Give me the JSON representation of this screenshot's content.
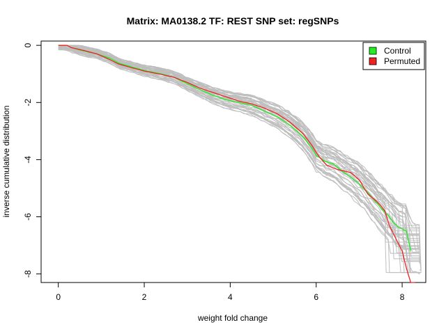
{
  "chart_data": {
    "type": "line",
    "title": "Matrix: MA0138.2 TF: REST SNP set: regSNPs",
    "xlabel": "weight fold change",
    "ylabel": "inverse cumulative distribution",
    "xlim": [
      -0.4,
      8.55
    ],
    "ylim": [
      -8.3,
      0.15
    ],
    "x_ticks": [
      0,
      2,
      4,
      6,
      8
    ],
    "y_ticks": [
      0,
      -2,
      -4,
      -6,
      -8
    ],
    "grid": false,
    "legend": {
      "position": "top-right",
      "entries": [
        {
          "label": "Control",
          "color": "#22ee22"
        },
        {
          "label": "Permuted",
          "color": "#ee2222"
        }
      ]
    },
    "background_series": {
      "color": "#bebebe",
      "count": 40,
      "description_free": true
    },
    "series": [
      {
        "name": "Control",
        "color": "#22ee22",
        "points": [
          [
            0,
            0
          ],
          [
            0.2,
            0
          ],
          [
            0.3,
            -0.08
          ],
          [
            0.6,
            -0.2
          ],
          [
            0.9,
            -0.3
          ],
          [
            1.2,
            -0.45
          ],
          [
            1.4,
            -0.62
          ],
          [
            1.7,
            -0.75
          ],
          [
            2.0,
            -0.88
          ],
          [
            2.4,
            -1.0
          ],
          [
            2.7,
            -1.12
          ],
          [
            3.0,
            -1.35
          ],
          [
            3.3,
            -1.55
          ],
          [
            3.6,
            -1.75
          ],
          [
            3.9,
            -1.9
          ],
          [
            4.2,
            -2.0
          ],
          [
            4.5,
            -2.1
          ],
          [
            4.8,
            -2.3
          ],
          [
            5.1,
            -2.5
          ],
          [
            5.4,
            -2.8
          ],
          [
            5.7,
            -3.2
          ],
          [
            5.9,
            -3.6
          ],
          [
            6.0,
            -3.85
          ],
          [
            6.2,
            -4.05
          ],
          [
            6.4,
            -4.15
          ],
          [
            6.6,
            -4.4
          ],
          [
            6.8,
            -4.6
          ],
          [
            7.0,
            -4.85
          ],
          [
            7.2,
            -5.15
          ],
          [
            7.4,
            -5.5
          ],
          [
            7.6,
            -5.85
          ],
          [
            7.7,
            -6.0
          ],
          [
            7.8,
            -6.2
          ],
          [
            7.9,
            -6.35
          ],
          [
            8.1,
            -6.5
          ],
          [
            8.2,
            -7.2
          ]
        ]
      },
      {
        "name": "Permuted",
        "color": "#ee2222",
        "points": [
          [
            0,
            0
          ],
          [
            0.2,
            0
          ],
          [
            0.3,
            -0.08
          ],
          [
            0.6,
            -0.18
          ],
          [
            0.9,
            -0.3
          ],
          [
            1.2,
            -0.5
          ],
          [
            1.4,
            -0.65
          ],
          [
            1.7,
            -0.78
          ],
          [
            2.0,
            -0.9
          ],
          [
            2.4,
            -1.02
          ],
          [
            2.7,
            -1.12
          ],
          [
            3.0,
            -1.3
          ],
          [
            3.3,
            -1.5
          ],
          [
            3.6,
            -1.65
          ],
          [
            3.9,
            -1.8
          ],
          [
            4.2,
            -1.95
          ],
          [
            4.5,
            -2.05
          ],
          [
            4.8,
            -2.2
          ],
          [
            5.1,
            -2.4
          ],
          [
            5.4,
            -2.7
          ],
          [
            5.7,
            -3.1
          ],
          [
            5.9,
            -3.5
          ],
          [
            6.0,
            -3.75
          ],
          [
            6.1,
            -3.95
          ],
          [
            6.25,
            -4.2
          ],
          [
            6.5,
            -4.35
          ],
          [
            6.8,
            -4.45
          ],
          [
            7.0,
            -4.7
          ],
          [
            7.2,
            -5.2
          ],
          [
            7.4,
            -5.45
          ],
          [
            7.5,
            -5.6
          ],
          [
            7.6,
            -5.8
          ],
          [
            7.7,
            -6.3
          ],
          [
            7.8,
            -6.6
          ],
          [
            7.9,
            -6.9
          ],
          [
            8.0,
            -7.2
          ],
          [
            8.1,
            -7.8
          ],
          [
            8.2,
            -8.3
          ],
          [
            8.3,
            -8.35
          ]
        ]
      }
    ]
  }
}
